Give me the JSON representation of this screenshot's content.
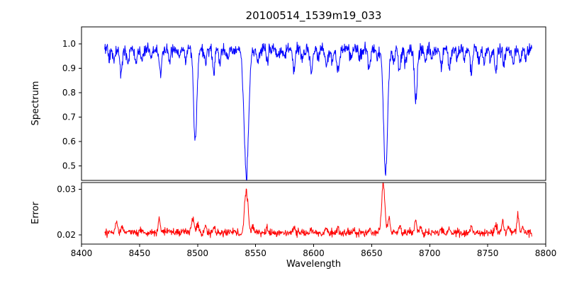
{
  "chart_data": {
    "type": "line",
    "title": "20100514_1539m19_033",
    "xlabel": "Wavelength",
    "x_range": [
      8400,
      8800
    ],
    "x_ticks": [
      8400,
      8450,
      8500,
      8550,
      8600,
      8650,
      8700,
      8750,
      8800
    ],
    "x_tick_labels": [
      "8400",
      "8450",
      "8500",
      "8550",
      "8600",
      "8650",
      "8700",
      "8750",
      "8800"
    ],
    "data_x_range": [
      8420,
      8788
    ],
    "n_points": 1100,
    "seed": 42,
    "grid": false,
    "legend": "none",
    "axis_color": "#000000",
    "subplots": [
      {
        "name": "spectrum",
        "ylabel": "Spectrum",
        "color": "#0000ff",
        "ylim": [
          0.44,
          1.07
        ],
        "yticks": [
          0.5,
          0.6,
          0.7,
          0.8,
          0.9,
          1.0
        ],
        "ytick_labels": [
          "0.5",
          "0.6",
          "0.7",
          "0.8",
          "0.9",
          "1.0"
        ],
        "continuum": 0.978,
        "noise": 0.022,
        "absorption_lines": [
          [
            8424,
            0.04,
            0.9
          ],
          [
            8428,
            0.05,
            0.9
          ],
          [
            8434,
            0.1,
            1.0
          ],
          [
            8440,
            0.05,
            0.9
          ],
          [
            8447,
            0.06,
            0.9
          ],
          [
            8452,
            0.05,
            0.9
          ],
          [
            8460,
            0.04,
            0.9
          ],
          [
            8468,
            0.11,
            1.0
          ],
          [
            8476,
            0.05,
            0.9
          ],
          [
            8484,
            0.04,
            0.9
          ],
          [
            8490,
            0.05,
            0.9
          ],
          [
            8498,
            0.38,
            1.4
          ],
          [
            8507,
            0.06,
            0.9
          ],
          [
            8514,
            0.1,
            1.0
          ],
          [
            8519,
            0.06,
            0.9
          ],
          [
            8526,
            0.04,
            0.9
          ],
          [
            8542,
            0.52,
            1.9
          ],
          [
            8552,
            0.06,
            0.9
          ],
          [
            8560,
            0.05,
            0.9
          ],
          [
            8569,
            0.04,
            0.9
          ],
          [
            8575,
            0.04,
            0.9
          ],
          [
            8583,
            0.09,
            1.0
          ],
          [
            8590,
            0.04,
            0.9
          ],
          [
            8598,
            0.1,
            1.0
          ],
          [
            8604,
            0.04,
            0.9
          ],
          [
            8611,
            0.08,
            1.0
          ],
          [
            8616,
            0.05,
            0.9
          ],
          [
            8621,
            0.09,
            1.0
          ],
          [
            8632,
            0.04,
            0.9
          ],
          [
            8640,
            0.04,
            0.9
          ],
          [
            8648,
            0.08,
            1.0
          ],
          [
            8655,
            0.05,
            0.9
          ],
          [
            8662,
            0.51,
            1.7
          ],
          [
            8669,
            0.05,
            0.9
          ],
          [
            8674,
            0.09,
            1.0
          ],
          [
            8679,
            0.06,
            0.9
          ],
          [
            8688,
            0.21,
            1.2
          ],
          [
            8696,
            0.04,
            0.9
          ],
          [
            8702,
            0.04,
            0.9
          ],
          [
            8710,
            0.07,
            0.9
          ],
          [
            8717,
            0.08,
            0.9
          ],
          [
            8724,
            0.04,
            0.9
          ],
          [
            8730,
            0.05,
            0.9
          ],
          [
            8736,
            0.09,
            1.0
          ],
          [
            8742,
            0.04,
            0.9
          ],
          [
            8747,
            0.06,
            0.9
          ],
          [
            8752,
            0.04,
            0.9
          ],
          [
            8757,
            0.09,
            1.0
          ],
          [
            8764,
            0.06,
            0.9
          ],
          [
            8772,
            0.05,
            0.9
          ],
          [
            8778,
            0.04,
            0.9
          ],
          [
            8783,
            0.05,
            0.9
          ]
        ]
      },
      {
        "name": "error",
        "ylabel": "Error",
        "color": "#ff0000",
        "ylim": [
          0.018,
          0.0315
        ],
        "yticks": [
          0.02,
          0.03
        ],
        "ytick_labels": [
          "0.02",
          "0.03"
        ],
        "baseline": 0.0205,
        "noise": 0.0007,
        "peaks": [
          [
            8430,
            0.0026,
            0.9
          ],
          [
            8435,
            0.0012,
            0.8
          ],
          [
            8452,
            0.0008,
            0.8
          ],
          [
            8467,
            0.0026,
            0.9
          ],
          [
            8475,
            0.0009,
            0.8
          ],
          [
            8496,
            0.003,
            1.1
          ],
          [
            8500,
            0.0022,
            0.9
          ],
          [
            8507,
            0.0013,
            0.8
          ],
          [
            8514,
            0.0012,
            0.9
          ],
          [
            8542,
            0.0092,
            1.5
          ],
          [
            8548,
            0.0015,
            1.0
          ],
          [
            8560,
            0.001,
            0.9
          ],
          [
            8583,
            0.001,
            0.9
          ],
          [
            8598,
            0.0011,
            0.9
          ],
          [
            8611,
            0.0009,
            0.9
          ],
          [
            8621,
            0.001,
            0.9
          ],
          [
            8648,
            0.0009,
            0.9
          ],
          [
            8660,
            0.0108,
            1.4
          ],
          [
            8665,
            0.003,
            1.0
          ],
          [
            8674,
            0.0012,
            0.9
          ],
          [
            8688,
            0.0022,
            1.0
          ],
          [
            8692,
            0.0014,
            0.9
          ],
          [
            8710,
            0.0008,
            0.8
          ],
          [
            8717,
            0.0009,
            0.8
          ],
          [
            8736,
            0.0011,
            0.9
          ],
          [
            8757,
            0.0016,
            0.9
          ],
          [
            8763,
            0.0024,
            0.9
          ],
          [
            8768,
            0.0014,
            0.8
          ],
          [
            8776,
            0.004,
            0.9
          ],
          [
            8780,
            0.0012,
            0.8
          ]
        ]
      }
    ]
  }
}
